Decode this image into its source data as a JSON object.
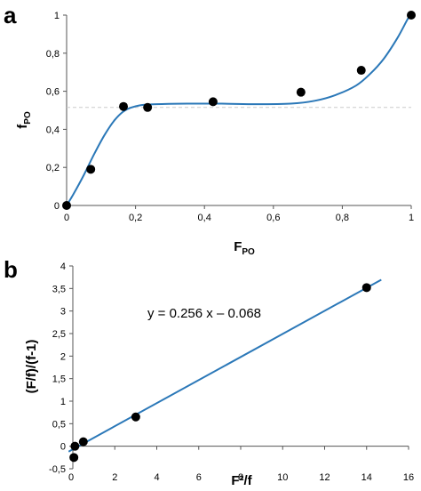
{
  "chart_data": [
    {
      "panel_label": "a",
      "type": "scatter",
      "xlabel": "F",
      "xlabel_sub": "PO",
      "ylabel": "f",
      "ylabel_sub": "PO",
      "xlim": [
        0,
        1
      ],
      "ylim": [
        0,
        1
      ],
      "x_ticks": [
        "0",
        "0,2",
        "0,4",
        "0,6",
        "0,8",
        "1"
      ],
      "y_ticks": [
        "0",
        "0,2",
        "0,4",
        "0,6",
        "0,8",
        "1"
      ],
      "reference_line_y": 0.515,
      "points": [
        {
          "x": 0.0,
          "y": 0.0
        },
        {
          "x": 0.07,
          "y": 0.19
        },
        {
          "x": 0.165,
          "y": 0.52
        },
        {
          "x": 0.235,
          "y": 0.515
        },
        {
          "x": 0.425,
          "y": 0.545
        },
        {
          "x": 0.68,
          "y": 0.595
        },
        {
          "x": 0.855,
          "y": 0.71
        },
        {
          "x": 1.0,
          "y": 1.0
        }
      ],
      "fit_curve": [
        [
          0,
          0
        ],
        [
          0.02,
          0.06
        ],
        [
          0.05,
          0.16
        ],
        [
          0.08,
          0.27
        ],
        [
          0.11,
          0.37
        ],
        [
          0.14,
          0.45
        ],
        [
          0.17,
          0.5
        ],
        [
          0.21,
          0.525
        ],
        [
          0.26,
          0.532
        ],
        [
          0.35,
          0.535
        ],
        [
          0.45,
          0.535
        ],
        [
          0.55,
          0.532
        ],
        [
          0.65,
          0.535
        ],
        [
          0.72,
          0.55
        ],
        [
          0.78,
          0.58
        ],
        [
          0.84,
          0.63
        ],
        [
          0.88,
          0.69
        ],
        [
          0.92,
          0.77
        ],
        [
          0.96,
          0.88
        ],
        [
          0.99,
          0.98
        ],
        [
          1.0,
          1.0
        ]
      ]
    },
    {
      "panel_label": "b",
      "type": "scatter",
      "xlabel": "F²/f",
      "ylabel": "(F/f)/(f-1)",
      "xlim": [
        0,
        16
      ],
      "ylim": [
        -0.5,
        4
      ],
      "x_ticks": [
        "0",
        "2",
        "4",
        "6",
        "8",
        "10",
        "12",
        "14",
        "16"
      ],
      "y_ticks": [
        "-0,5",
        "0",
        "0,5",
        "1",
        "1,5",
        "2",
        "2,5",
        "3",
        "3,5",
        "4"
      ],
      "equation": "y = 0.256 x – 0.068",
      "fit_line": {
        "slope": 0.256,
        "intercept": -0.068,
        "x_range": [
          -0.2,
          14.7
        ]
      },
      "points": [
        {
          "x": 0.05,
          "y": -0.25
        },
        {
          "x": 0.1,
          "y": 0.0
        },
        {
          "x": 0.5,
          "y": 0.1
        },
        {
          "x": 3.0,
          "y": 0.65
        },
        {
          "x": 14.0,
          "y": 3.52
        }
      ]
    }
  ],
  "colors": {
    "fit": "#2b78b8",
    "points": "#000000",
    "reference": "#cccccc"
  }
}
